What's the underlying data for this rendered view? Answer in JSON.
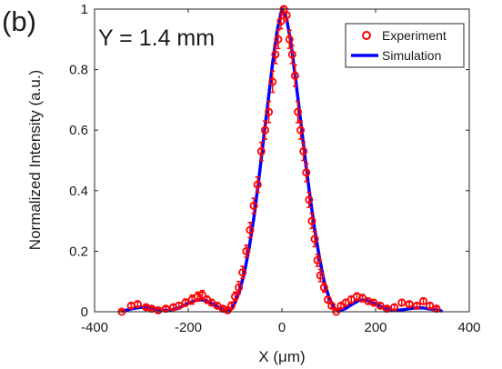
{
  "chart_data": {
    "type": "scatter",
    "panel_label": "(b)",
    "annotation": "Y = 1.4 mm",
    "xlabel": "X (μm)",
    "ylabel": "Normalized Intensity (a.u.)",
    "xlim": [
      -400,
      400
    ],
    "ylim": [
      0,
      1
    ],
    "xticks": [
      "-400",
      "-200",
      "0",
      "200",
      "400"
    ],
    "yticks": [
      "0",
      "0.2",
      "0.4",
      "0.6",
      "0.8",
      "1"
    ],
    "grid": false,
    "legend_position": "top-right",
    "colors": {
      "experiment": "#ff0000",
      "simulation": "#0000ff",
      "axis": "#262626"
    },
    "series": [
      {
        "name": "Experiment",
        "kind": "markers-with-errorbars",
        "x": [
          -342,
          -322,
          -308,
          -290,
          -278,
          -264,
          -248,
          -232,
          -220,
          -206,
          -192,
          -180,
          -170,
          -160,
          -150,
          -138,
          -126,
          -116,
          -108,
          -100,
          -92,
          -84,
          -76,
          -68,
          -60,
          -52,
          -44,
          -36,
          -28,
          -20,
          -14,
          -8,
          -2,
          4,
          10,
          16,
          22,
          28,
          34,
          40,
          46,
          52,
          58,
          64,
          70,
          76,
          82,
          90,
          98,
          106,
          116,
          126,
          136,
          148,
          160,
          172,
          184,
          196,
          210,
          224,
          240,
          256,
          272,
          288,
          302,
          316,
          330
        ],
        "y": [
          0.0,
          0.02,
          0.025,
          0.015,
          0.01,
          0.005,
          0.01,
          0.015,
          0.02,
          0.03,
          0.04,
          0.05,
          0.055,
          0.04,
          0.03,
          0.02,
          0.01,
          0.005,
          0.02,
          0.05,
          0.08,
          0.13,
          0.2,
          0.27,
          0.35,
          0.42,
          0.53,
          0.6,
          0.66,
          0.76,
          0.85,
          0.9,
          0.96,
          1.0,
          0.98,
          0.9,
          0.85,
          0.78,
          0.66,
          0.6,
          0.53,
          0.46,
          0.37,
          0.3,
          0.24,
          0.17,
          0.12,
          0.08,
          0.04,
          0.02,
          0.0,
          0.02,
          0.03,
          0.04,
          0.05,
          0.045,
          0.035,
          0.03,
          0.02,
          0.01,
          0.015,
          0.03,
          0.025,
          0.02,
          0.035,
          0.02,
          0.01
        ],
        "err": [
          0.005,
          0.008,
          0.008,
          0.006,
          0.005,
          0.005,
          0.006,
          0.008,
          0.01,
          0.012,
          0.015,
          0.015,
          0.015,
          0.012,
          0.01,
          0.008,
          0.006,
          0.006,
          0.012,
          0.015,
          0.02,
          0.02,
          0.02,
          0.025,
          0.025,
          0.025,
          0.03,
          0.03,
          0.035,
          0.035,
          0.03,
          0.03,
          0.025,
          0.01,
          0.02,
          0.03,
          0.03,
          0.035,
          0.035,
          0.03,
          0.03,
          0.03,
          0.025,
          0.025,
          0.025,
          0.02,
          0.02,
          0.015,
          0.01,
          0.008,
          0.006,
          0.008,
          0.01,
          0.012,
          0.012,
          0.012,
          0.01,
          0.01,
          0.008,
          0.006,
          0.008,
          0.01,
          0.008,
          0.008,
          0.01,
          0.008,
          0.006
        ]
      },
      {
        "name": "Simulation",
        "kind": "line",
        "x": [
          -340,
          -320,
          -300,
          -280,
          -260,
          -240,
          -220,
          -200,
          -180,
          -165,
          -150,
          -135,
          -120,
          -110,
          -100,
          -90,
          -80,
          -70,
          -60,
          -50,
          -40,
          -30,
          -20,
          -10,
          0,
          10,
          20,
          30,
          40,
          50,
          60,
          70,
          80,
          90,
          100,
          110,
          120,
          135,
          150,
          165,
          180,
          200,
          220,
          240,
          260,
          280,
          300,
          320,
          340
        ],
        "y": [
          0.002,
          0.01,
          0.015,
          0.012,
          0.006,
          0.004,
          0.012,
          0.028,
          0.04,
          0.038,
          0.028,
          0.014,
          0.003,
          0.005,
          0.03,
          0.07,
          0.13,
          0.21,
          0.31,
          0.43,
          0.56,
          0.69,
          0.82,
          0.93,
          1.0,
          0.97,
          0.88,
          0.76,
          0.63,
          0.5,
          0.38,
          0.27,
          0.18,
          0.1,
          0.05,
          0.015,
          0.002,
          0.01,
          0.025,
          0.038,
          0.038,
          0.026,
          0.01,
          0.004,
          0.007,
          0.012,
          0.013,
          0.008,
          0.003
        ]
      }
    ]
  }
}
